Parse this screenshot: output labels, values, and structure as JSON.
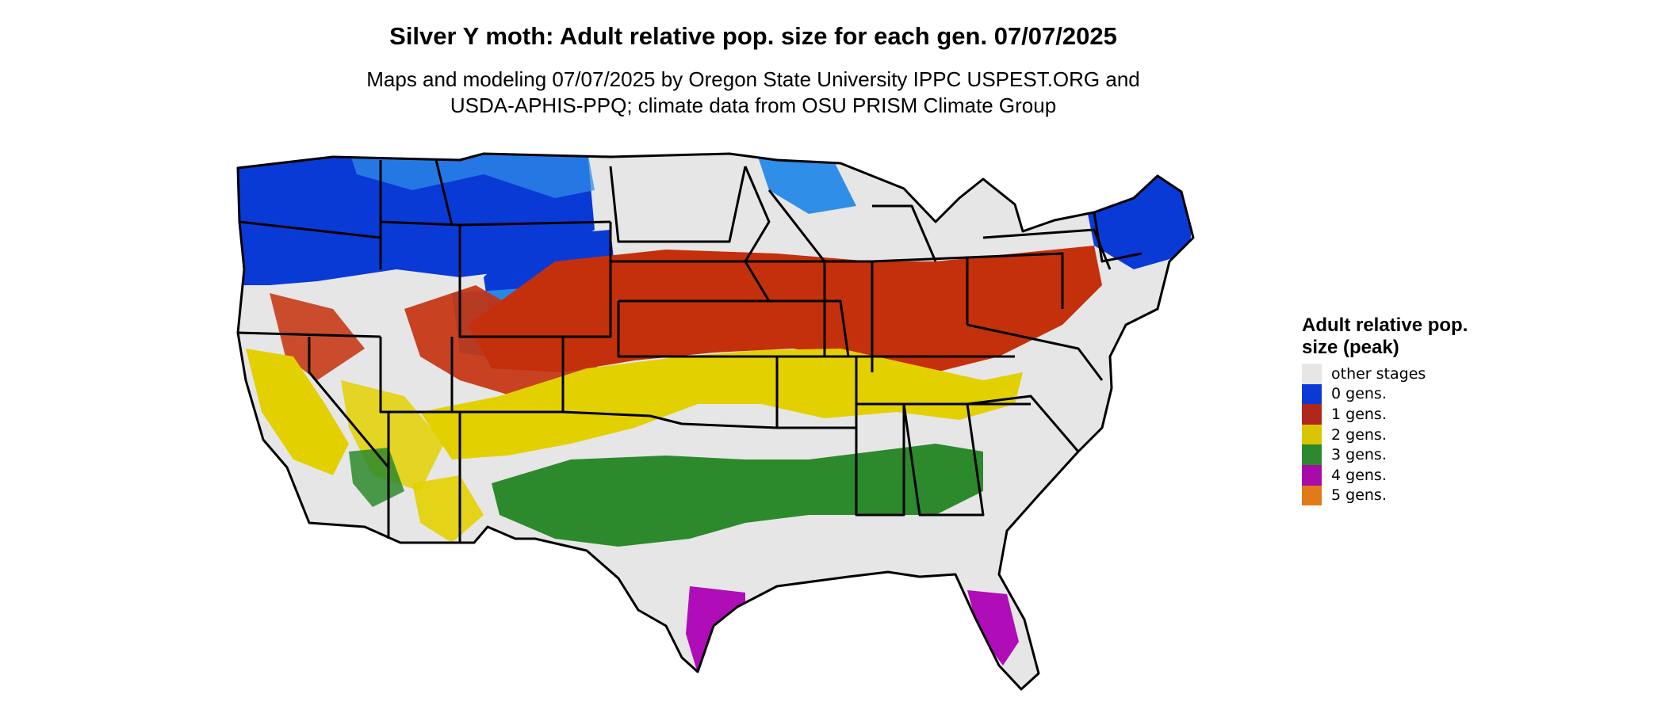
{
  "title": "Silver Y moth: Adult relative pop. size for each gen. 07/07/2025",
  "subtitle": {
    "line1": "Maps and modeling 07/07/2025 by Oregon State University IPPC USPEST.ORG and",
    "line2": "USDA-APHIS-PPQ; climate data from OSU PRISM Climate Group"
  },
  "legend": {
    "title": "Adult relative pop. size (peak)",
    "items": [
      {
        "label": "other stages",
        "color": "#e6e6e6"
      },
      {
        "label": "0 gens.",
        "color": "#0a3ad6"
      },
      {
        "label": "1 gens.",
        "color": "#b0281c"
      },
      {
        "label": "2 gens.",
        "color": "#d8c400"
      },
      {
        "label": "3 gens.",
        "color": "#2c8a2c"
      },
      {
        "label": "4 gens.",
        "color": "#a90ba9"
      },
      {
        "label": "5 gens.",
        "color": "#e07a18"
      }
    ]
  },
  "map": {
    "region": "contiguous-united-states",
    "colors": {
      "background": "#e6e6e6",
      "gen0": "#0a3ad6",
      "gen0_light": "#2f8ee8",
      "gen1": "#c4300c",
      "gen2": "#e3d000",
      "gen3": "#2c8a2c",
      "gen4": "#b00cb8",
      "gen5": "#e07a18",
      "border": "#000000"
    }
  }
}
